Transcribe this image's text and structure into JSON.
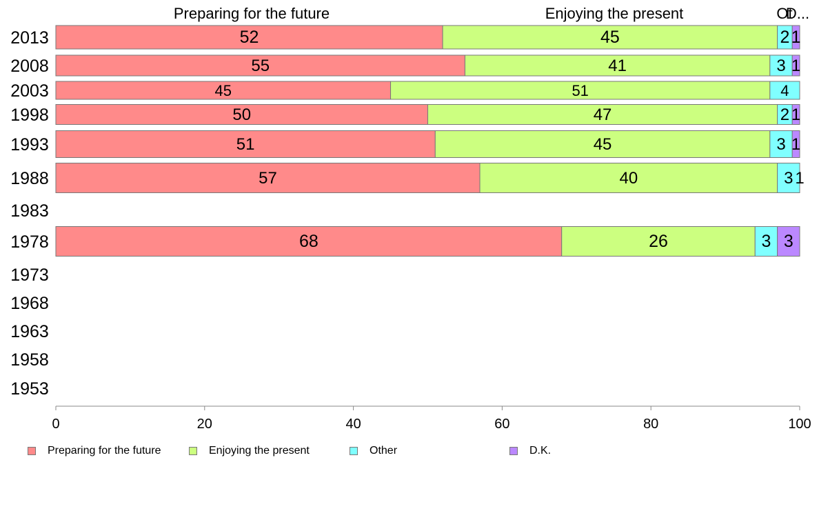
{
  "chart_data": {
    "type": "bar",
    "orientation": "horizontal",
    "stacked": true,
    "categories": [
      "2013",
      "2008",
      "2003",
      "1998",
      "1993",
      "1988",
      "1983",
      "1978",
      "1973",
      "1968",
      "1963",
      "1958",
      "1953"
    ],
    "series": [
      {
        "name": "Preparing for the future",
        "color": "#ff8a8a",
        "values": [
          52,
          55,
          45,
          50,
          51,
          57,
          null,
          68,
          null,
          null,
          null,
          null,
          null
        ]
      },
      {
        "name": "Enjoying the present",
        "color": "#ccff80",
        "values": [
          45,
          41,
          51,
          47,
          45,
          40,
          null,
          26,
          null,
          null,
          null,
          null,
          null
        ]
      },
      {
        "name": "Other",
        "color": "#80ffff",
        "values": [
          2,
          3,
          4,
          2,
          3,
          3,
          null,
          3,
          null,
          null,
          null,
          null,
          null
        ]
      },
      {
        "name": "D.K.",
        "color": "#bb88ff",
        "values": [
          1,
          1,
          0,
          1,
          1,
          1,
          null,
          3,
          null,
          null,
          null,
          null,
          null
        ]
      }
    ],
    "top_labels": [
      "Preparing for the future",
      "Enjoying the present",
      "Ot",
      "D..."
    ],
    "xlim": [
      0,
      100
    ],
    "xticks": [
      "0",
      "20",
      "40",
      "60",
      "80",
      "100"
    ],
    "grid": false,
    "legend_position": "bottom"
  }
}
